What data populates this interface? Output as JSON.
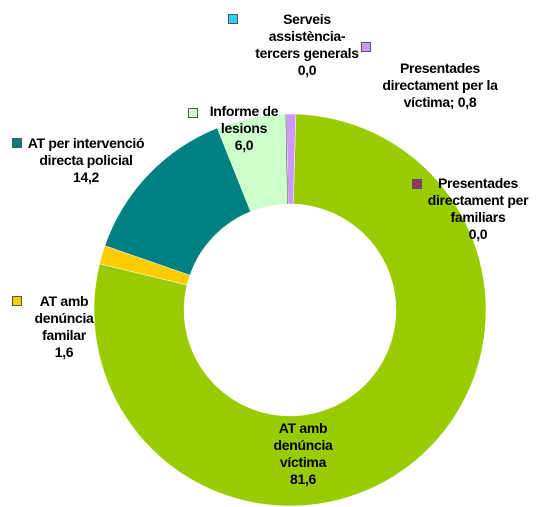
{
  "chart_data": {
    "type": "donut",
    "categories": [
      "Presentades directament per familiars",
      "AT amb denúncia víctima",
      "AT amb denúncia familar",
      "AT per intervenció directa policial",
      "Informe de lesions",
      "Serveis assistència-tercers generals",
      "Presentades directament per la víctima;"
    ],
    "values": [
      0.0,
      81.6,
      1.6,
      14.2,
      6.0,
      0.0,
      0.8
    ],
    "value_labels": [
      "0,0",
      "81,6",
      "1,6",
      "14,2",
      "6,0",
      "0,0",
      "0,8"
    ],
    "colors": [
      "#993366",
      "#99cc00",
      "#ffcc00",
      "#008080",
      "#ccffcc",
      "#33ccff",
      "#cc99ff"
    ]
  }
}
